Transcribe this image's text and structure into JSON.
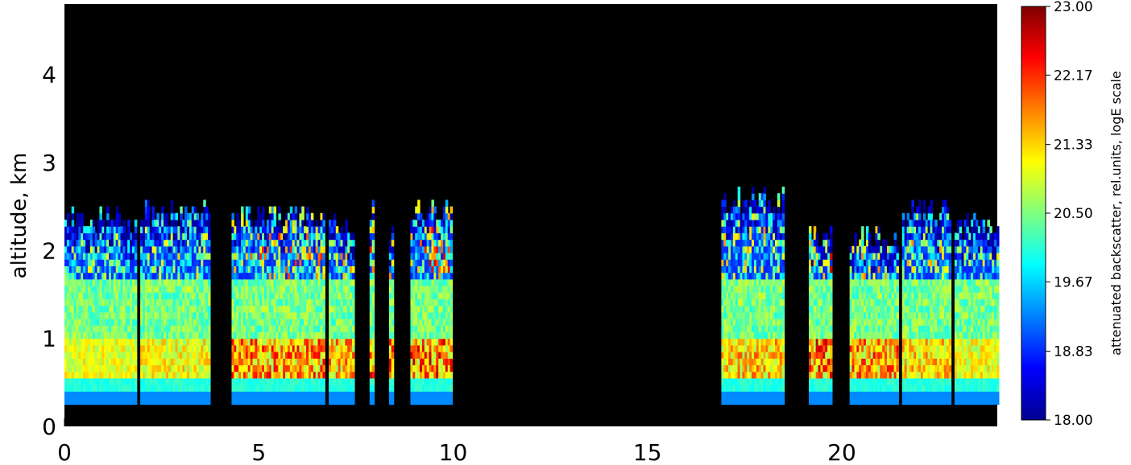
{
  "chart_data": {
    "type": "heatmap",
    "title": "",
    "xlabel": "",
    "ylabel": "altitude,  km",
    "xlim": [
      0,
      24
    ],
    "ylim": [
      0,
      4.8
    ],
    "x_ticks": [
      "0",
      "5",
      "10",
      "15",
      "20"
    ],
    "x_tick_values": [
      0,
      5,
      10,
      15,
      20
    ],
    "y_ticks": [
      "0",
      "1",
      "2",
      "3",
      "4"
    ],
    "y_tick_values": [
      0,
      1,
      2,
      3,
      4
    ],
    "colorbar": {
      "label": "attenuated backscatter,  rel.units,  logE scale",
      "range": [
        18.0,
        23.0
      ],
      "ticks": [
        "18.00",
        "18.83",
        "19.67",
        "20.50",
        "21.33",
        "22.17",
        "23.00"
      ],
      "tick_values": [
        18.0,
        18.83,
        19.67,
        20.5,
        21.33,
        22.17,
        23.0
      ],
      "colormap": "rainbow"
    },
    "background_color": "#000000",
    "signal_segments": [
      {
        "start": 0.0,
        "end": 1.85,
        "top_km": 2.45,
        "peak": 21.2
      },
      {
        "start": 1.95,
        "end": 3.75,
        "top_km": 2.55,
        "peak": 21.4
      },
      {
        "start": 4.3,
        "end": 6.65,
        "top_km": 2.5,
        "peak": 22.3
      },
      {
        "start": 6.8,
        "end": 7.45,
        "top_km": 2.4,
        "peak": 22.0
      },
      {
        "start": 7.85,
        "end": 7.95,
        "top_km": 2.6,
        "peak": 22.5
      },
      {
        "start": 8.35,
        "end": 8.45,
        "top_km": 2.35,
        "peak": 22.5
      },
      {
        "start": 8.9,
        "end": 9.95,
        "top_km": 2.55,
        "peak": 22.6
      },
      {
        "start": 16.9,
        "end": 18.5,
        "top_km": 2.7,
        "peak": 21.8
      },
      {
        "start": 19.15,
        "end": 19.75,
        "top_km": 2.3,
        "peak": 22.6
      },
      {
        "start": 20.2,
        "end": 21.45,
        "top_km": 2.25,
        "peak": 22.2
      },
      {
        "start": 21.55,
        "end": 22.8,
        "top_km": 2.55,
        "peak": 21.7
      },
      {
        "start": 22.9,
        "end": 24.0,
        "top_km": 2.4,
        "peak": 21.3
      }
    ]
  }
}
